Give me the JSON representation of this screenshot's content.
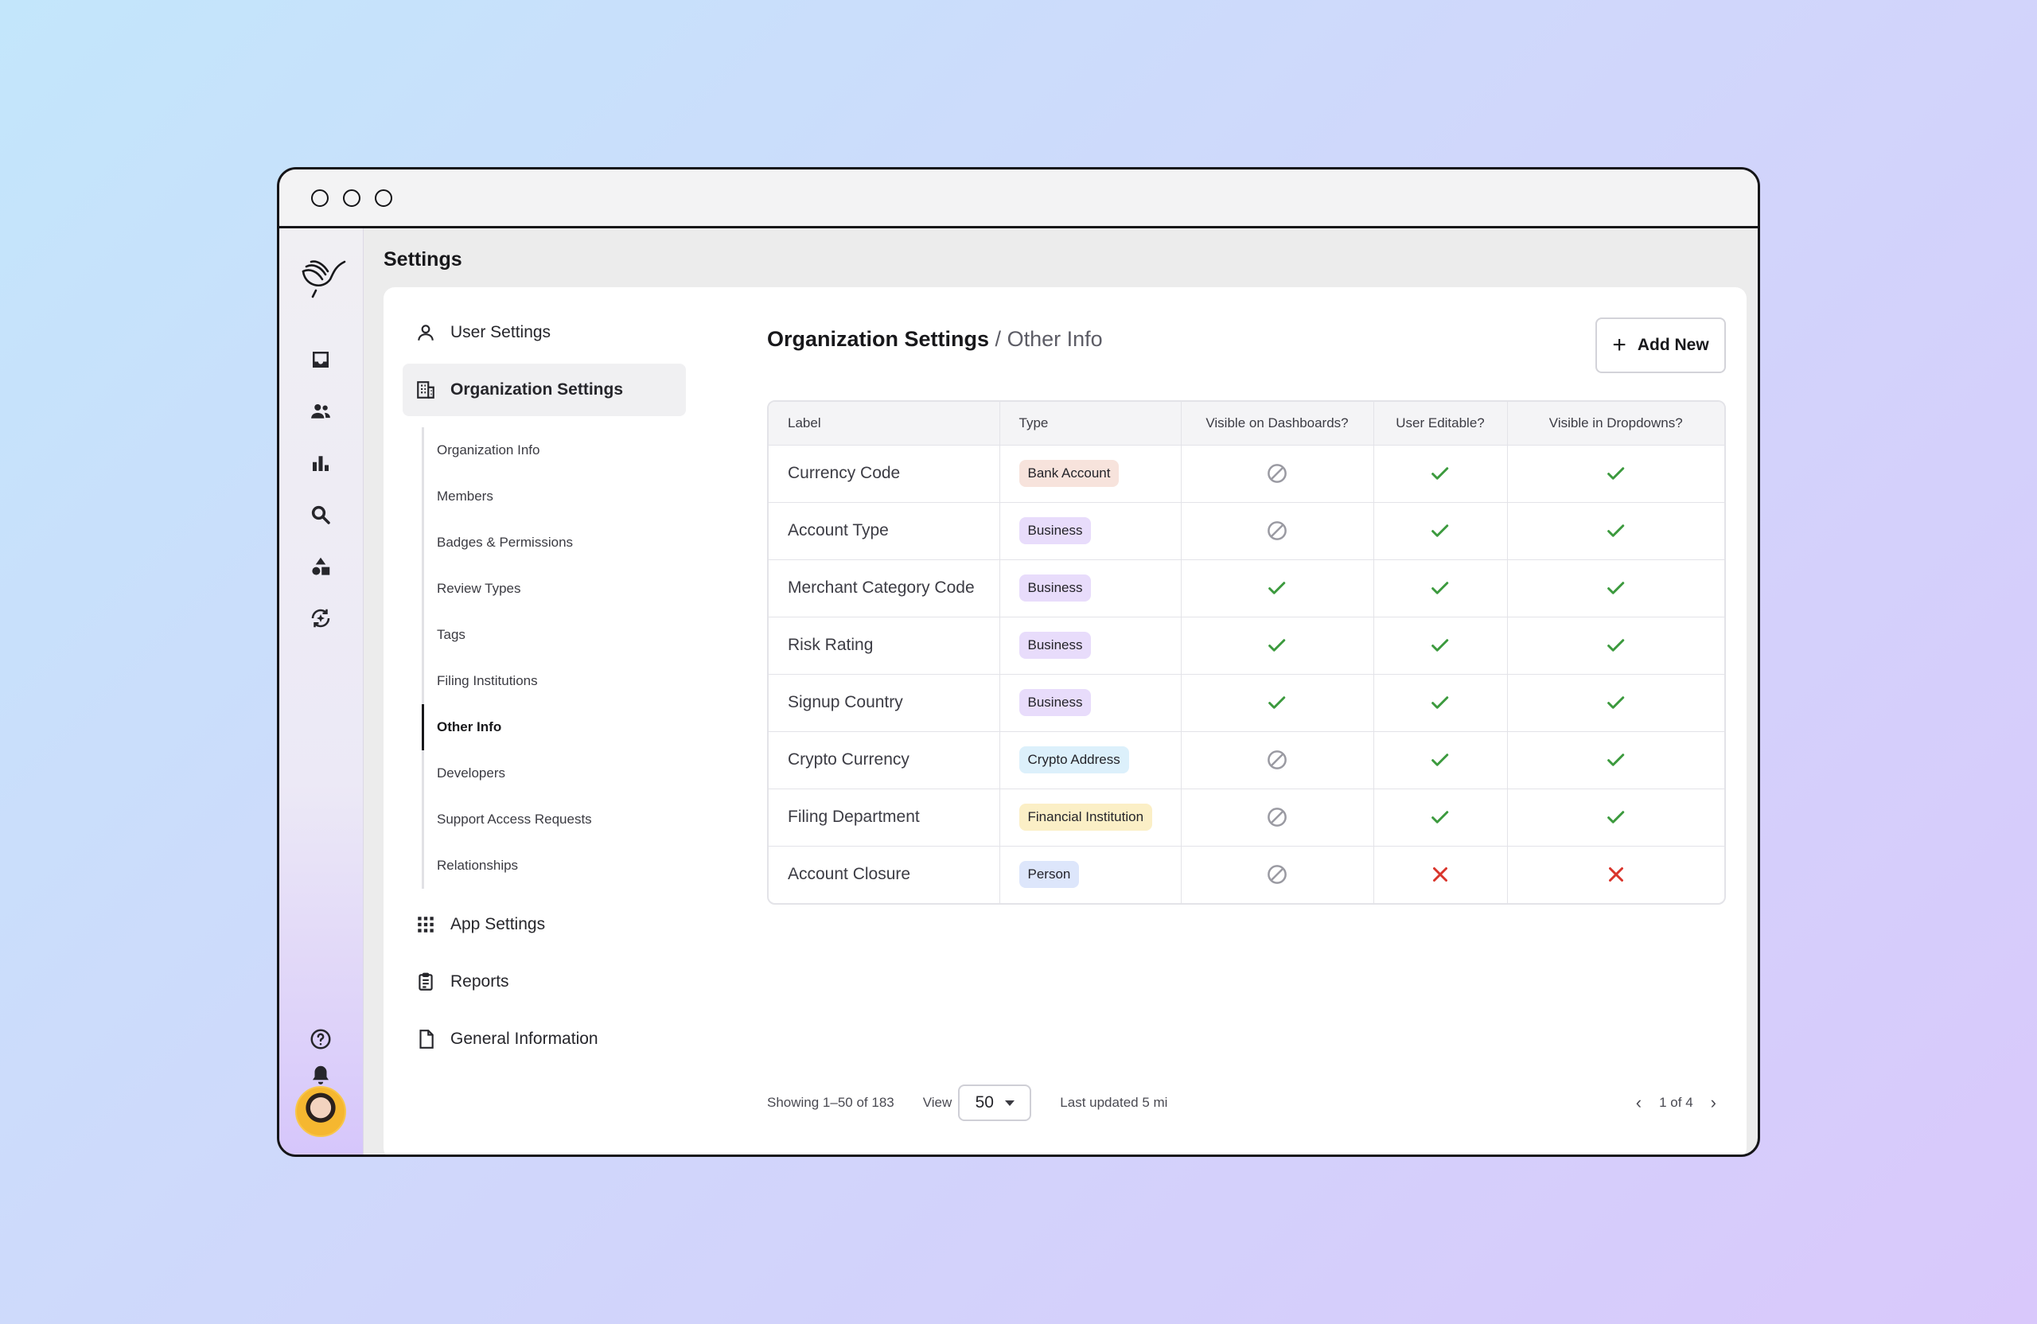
{
  "page": {
    "title": "Settings"
  },
  "nav": {
    "user_settings": "User Settings",
    "organization_settings": "Organization Settings",
    "sub_items": [
      {
        "label": "Organization Info"
      },
      {
        "label": "Members"
      },
      {
        "label": "Badges & Permissions"
      },
      {
        "label": "Review Types"
      },
      {
        "label": "Tags"
      },
      {
        "label": "Filing Institutions"
      },
      {
        "label": "Other Info",
        "active": true
      },
      {
        "label": "Developers"
      },
      {
        "label": "Support Access Requests"
      },
      {
        "label": "Relationships"
      }
    ],
    "app_settings": "App Settings",
    "reports": "Reports",
    "general_information": "General Information"
  },
  "breadcrumb": {
    "section": "Organization Settings",
    "separator": "/",
    "current": "Other Info"
  },
  "toolbar": {
    "add_label": "Add New"
  },
  "table": {
    "headers": [
      "Label",
      "Type",
      "Visible on Dashboards?",
      "User Editable?",
      "Visible in Dropdowns?"
    ],
    "rows": [
      {
        "label": "Currency Code",
        "type": "Bank Account",
        "dash": "disabled",
        "edit": "yes",
        "drop": "yes"
      },
      {
        "label": "Account Type",
        "type": "Business",
        "dash": "disabled",
        "edit": "yes",
        "drop": "yes"
      },
      {
        "label": "Merchant Category Code",
        "type": "Business",
        "dash": "yes",
        "edit": "yes",
        "drop": "yes"
      },
      {
        "label": "Risk Rating",
        "type": "Business",
        "dash": "yes",
        "edit": "yes",
        "drop": "yes"
      },
      {
        "label": "Signup Country",
        "type": "Business",
        "dash": "yes",
        "edit": "yes",
        "drop": "yes"
      },
      {
        "label": "Crypto Currency",
        "type": "Crypto Address",
        "dash": "disabled",
        "edit": "yes",
        "drop": "yes"
      },
      {
        "label": "Filing Department",
        "type": "Financial Institution",
        "dash": "disabled",
        "edit": "yes",
        "drop": "yes"
      },
      {
        "label": "Account Closure",
        "type": "Person",
        "dash": "disabled",
        "edit": "no",
        "drop": "no"
      }
    ]
  },
  "type_colors": {
    "Bank Account": "#f7e3dc",
    "Business": "#e8dcfb",
    "Crypto Address": "#dcf0fb",
    "Financial Institution": "#fbefc6",
    "Person": "#dde6fb"
  },
  "colors": {
    "check": "#3c9a3e",
    "cross": "#d9342b",
    "disabled": "#9a9aa2"
  },
  "footer": {
    "showing": "Showing 1–50 of 183",
    "view_label": "View",
    "view_value": "50",
    "last_updated": "Last updated 5 mi",
    "page_indicator": "1 of 4"
  }
}
